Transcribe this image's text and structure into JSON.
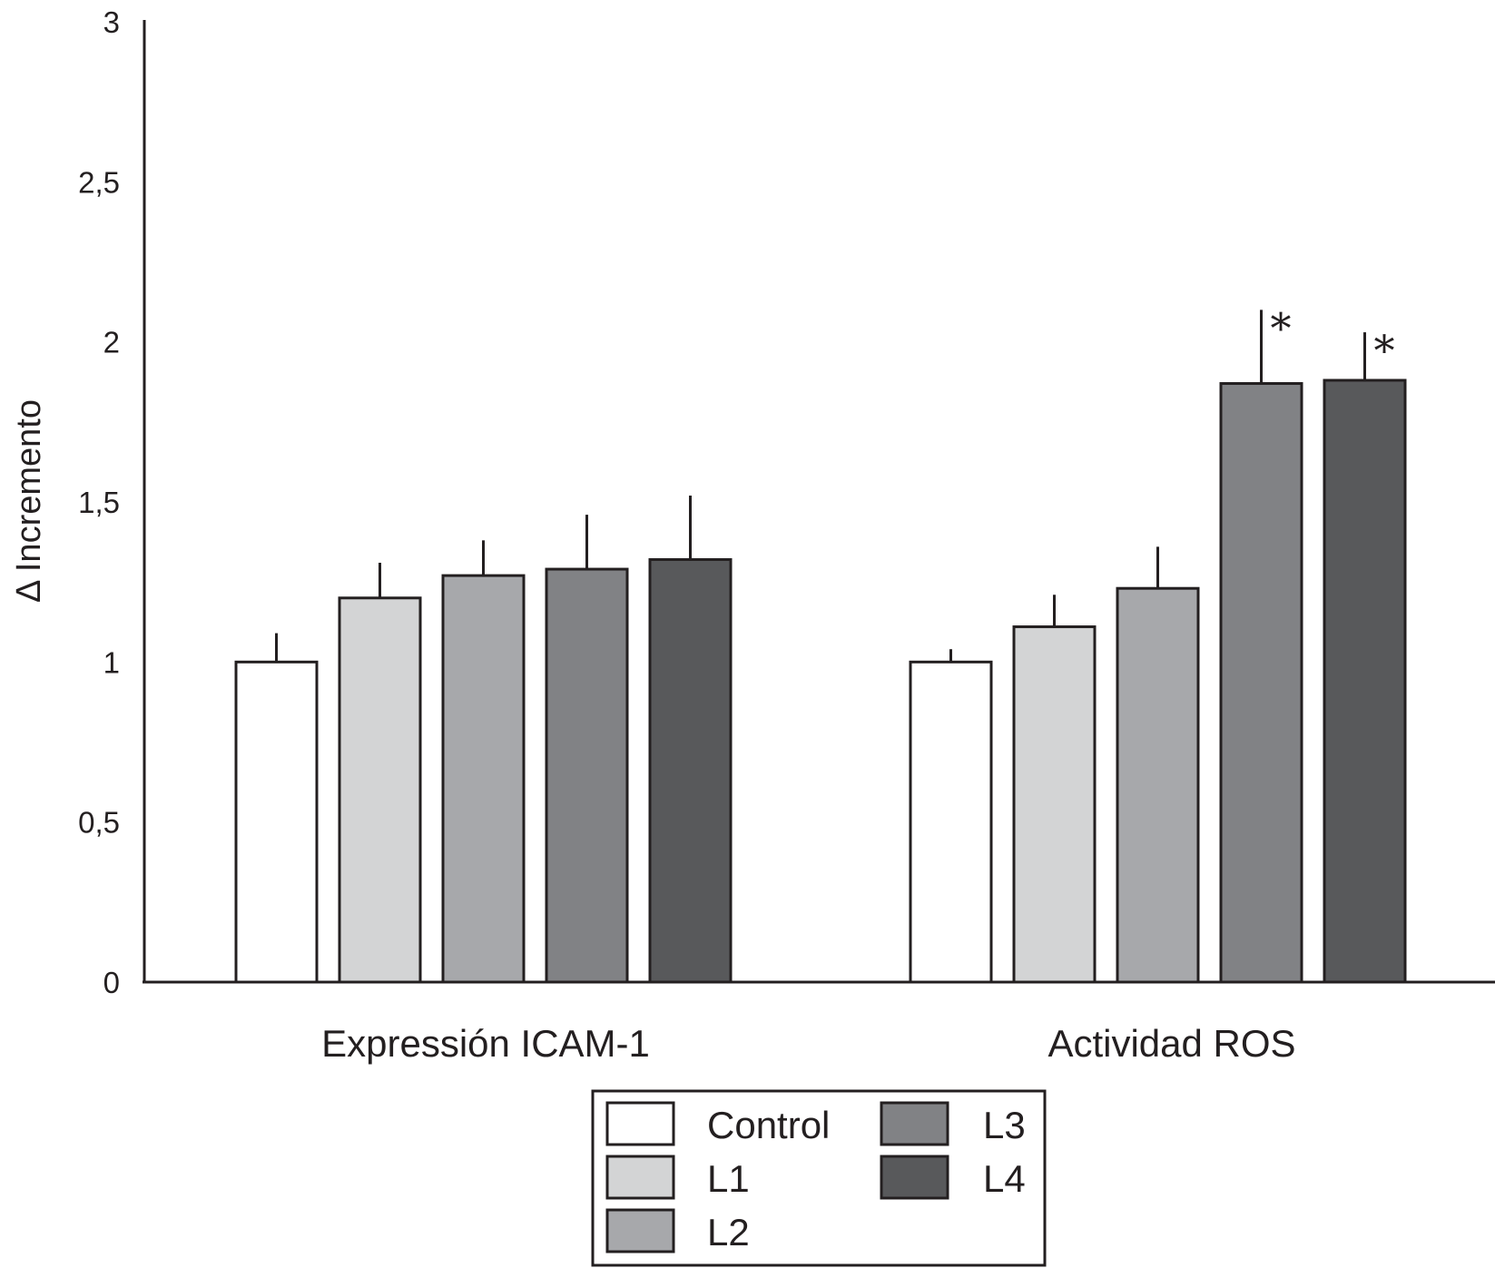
{
  "chart_data": {
    "type": "bar",
    "title": "",
    "xlabel": "",
    "ylabel": "Δ Incremento",
    "ylim": [
      0,
      3
    ],
    "yticks": [
      0,
      0.5,
      1,
      1.5,
      2,
      2.5,
      3
    ],
    "ytick_labels": [
      "0",
      "0,5",
      "1",
      "1,5",
      "2",
      "2,5",
      "3"
    ],
    "categories": [
      "Expressión ICAM-1",
      "Actividad ROS"
    ],
    "series": [
      {
        "name": "Control",
        "color": "#ffffff",
        "values": [
          1.0,
          1.0
        ],
        "errors": [
          0.09,
          0.04
        ],
        "significant": [
          false,
          false
        ]
      },
      {
        "name": "L1",
        "color": "#d3d4d5",
        "values": [
          1.2,
          1.11
        ],
        "errors": [
          0.11,
          0.1
        ],
        "significant": [
          false,
          false
        ]
      },
      {
        "name": "L2",
        "color": "#a7a8ab",
        "values": [
          1.27,
          1.23
        ],
        "errors": [
          0.11,
          0.13
        ],
        "significant": [
          false,
          false
        ]
      },
      {
        "name": "L3",
        "color": "#818285",
        "values": [
          1.29,
          1.87
        ],
        "errors": [
          0.17,
          0.23
        ],
        "significant": [
          false,
          true
        ]
      },
      {
        "name": "L4",
        "color": "#58595b",
        "values": [
          1.32,
          1.88
        ],
        "errors": [
          0.2,
          0.15
        ],
        "significant": [
          false,
          true
        ]
      }
    ],
    "significance_marker": "*",
    "grid": false,
    "legend": {
      "placement": "bottom-center",
      "columns": 2
    }
  }
}
